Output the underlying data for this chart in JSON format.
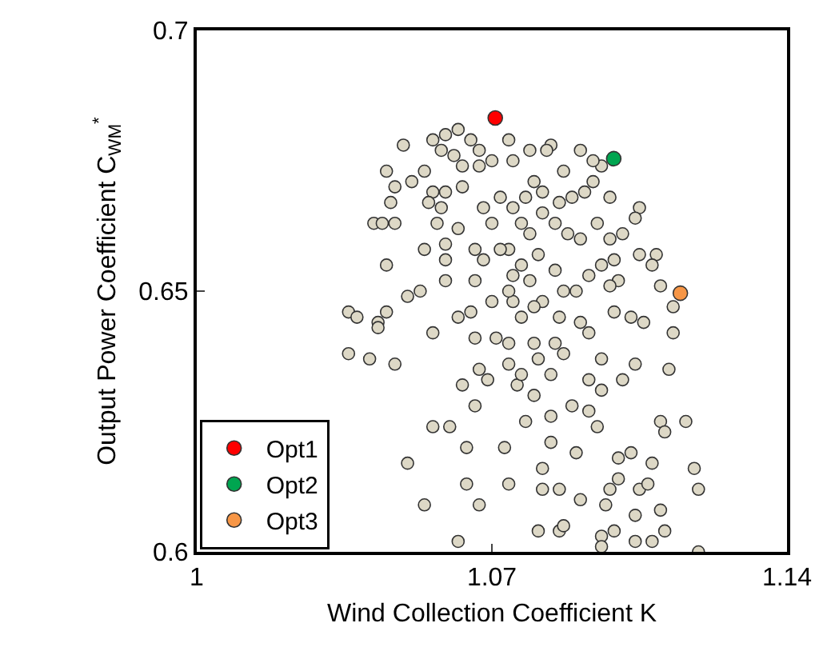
{
  "chart_data": {
    "type": "scatter",
    "xlabel": "Wind Collection Coefficient K",
    "ylabel": "Output Power Coefficient C$_{WM}$$^{*}$",
    "xlim": [
      1,
      1.14
    ],
    "xticks": [
      1,
      1.07,
      1.14
    ],
    "ylim": [
      0.6,
      0.7
    ],
    "yticks": [
      0.6,
      0.65,
      0.7
    ],
    "legend": "bottom left",
    "marker": "circle",
    "series": [
      {
        "color": "#ddd8c6",
        "x": [
          1.036,
          1.038,
          1.043,
          1.043,
          1.045,
          1.036,
          1.041,
          1.047,
          1.05,
          1.054,
          1.062,
          1.056,
          1.056,
          1.053,
          1.05,
          1.054,
          1.045,
          1.042,
          1.044,
          1.047,
          1.045,
          1.047,
          1.046,
          1.051,
          1.054,
          1.049,
          1.056,
          1.059,
          1.062,
          1.065,
          1.067,
          1.056,
          1.055,
          1.058,
          1.057,
          1.059,
          1.059,
          1.059,
          1.062,
          1.065,
          1.066,
          1.066,
          1.067,
          1.063,
          1.066,
          1.06,
          1.064,
          1.064,
          1.067,
          1.069,
          1.071,
          1.074,
          1.074,
          1.073,
          1.074,
          1.076,
          1.078,
          1.081,
          1.082,
          1.082,
          1.086,
          1.086,
          1.087,
          1.084,
          1.084,
          1.09,
          1.091,
          1.089,
          1.093,
          1.093,
          1.095,
          1.096,
          1.096,
          1.097,
          1.098,
          1.099,
          1.1,
          1.1,
          1.101,
          1.103,
          1.104,
          1.105,
          1.104,
          1.104,
          1.107,
          1.108,
          1.108,
          1.11,
          1.111,
          1.11,
          1.111,
          1.112,
          1.113,
          1.113,
          1.11,
          1.116,
          1.118,
          1.119,
          1.119,
          1.105,
          1.104,
          1.101,
          1.105,
          1.109,
          1.108,
          1.1,
          1.098,
          1.106,
          1.103,
          1.099,
          1.093,
          1.091,
          1.086,
          1.082,
          1.08,
          1.077,
          1.075,
          1.074,
          1.07,
          1.075,
          1.077,
          1.079,
          1.081,
          1.085,
          1.087,
          1.09,
          1.093,
          1.096,
          1.099,
          1.098,
          1.095,
          1.091,
          1.088,
          1.085,
          1.082,
          1.079,
          1.077,
          1.074,
          1.072,
          1.07,
          1.068,
          1.068,
          1.072,
          1.075,
          1.078,
          1.08,
          1.082,
          1.086,
          1.089,
          1.092,
          1.094,
          1.098,
          1.096,
          1.094,
          1.091,
          1.087,
          1.084,
          1.083,
          1.079,
          1.075,
          1.074,
          1.07,
          1.067,
          1.063,
          1.061,
          1.058,
          1.059,
          1.063,
          1.062,
          1.066,
          1.084,
          1.087,
          1.081,
          1.077,
          1.08,
          1.096,
          1.096,
          1.08,
          1.085
        ],
        "values": [
          0.646,
          0.645,
          0.644,
          0.643,
          0.646,
          0.638,
          0.637,
          0.636,
          0.617,
          0.609,
          0.602,
          0.624,
          0.642,
          0.65,
          0.649,
          0.658,
          0.655,
          0.663,
          0.663,
          0.663,
          0.673,
          0.67,
          0.667,
          0.671,
          0.673,
          0.678,
          0.679,
          0.68,
          0.681,
          0.679,
          0.677,
          0.669,
          0.667,
          0.666,
          0.663,
          0.659,
          0.656,
          0.652,
          0.645,
          0.646,
          0.652,
          0.641,
          0.635,
          0.632,
          0.628,
          0.624,
          0.62,
          0.613,
          0.609,
          0.633,
          0.641,
          0.64,
          0.636,
          0.62,
          0.613,
          0.632,
          0.625,
          0.604,
          0.612,
          0.616,
          0.612,
          0.604,
          0.605,
          0.626,
          0.621,
          0.619,
          0.61,
          0.628,
          0.633,
          0.627,
          0.624,
          0.603,
          0.601,
          0.609,
          0.612,
          0.604,
          0.614,
          0.618,
          0.633,
          0.619,
          0.636,
          0.612,
          0.607,
          0.602,
          0.613,
          0.617,
          0.602,
          0.608,
          0.604,
          0.625,
          0.623,
          0.635,
          0.642,
          0.647,
          0.651,
          0.625,
          0.616,
          0.612,
          0.6,
          0.666,
          0.664,
          0.661,
          0.657,
          0.657,
          0.655,
          0.652,
          0.651,
          0.644,
          0.645,
          0.646,
          0.642,
          0.644,
          0.645,
          0.648,
          0.647,
          0.645,
          0.648,
          0.65,
          0.648,
          0.653,
          0.655,
          0.652,
          0.657,
          0.654,
          0.65,
          0.65,
          0.653,
          0.655,
          0.656,
          0.66,
          0.663,
          0.66,
          0.661,
          0.663,
          0.665,
          0.661,
          0.663,
          0.658,
          0.658,
          0.663,
          0.656,
          0.666,
          0.668,
          0.666,
          0.668,
          0.671,
          0.669,
          0.667,
          0.668,
          0.669,
          0.671,
          0.668,
          0.674,
          0.675,
          0.677,
          0.673,
          0.678,
          0.677,
          0.677,
          0.675,
          0.679,
          0.675,
          0.674,
          0.674,
          0.676,
          0.677,
          0.669,
          0.67,
          0.662,
          0.658,
          0.634,
          0.638,
          0.637,
          0.634,
          0.63,
          0.637,
          0.631,
          0.64,
          0.64
        ]
      },
      {
        "name": "Opt1",
        "color": "#ff0000",
        "x": [
          1.0708
        ],
        "values": [
          0.6832
        ]
      },
      {
        "name": "Opt2",
        "color": "#00a550",
        "x": [
          1.0989
        ],
        "values": [
          0.6754
        ]
      },
      {
        "name": "Opt3",
        "color": "#f79646",
        "x": [
          1.1147
        ],
        "values": [
          0.6496
        ]
      }
    ]
  }
}
